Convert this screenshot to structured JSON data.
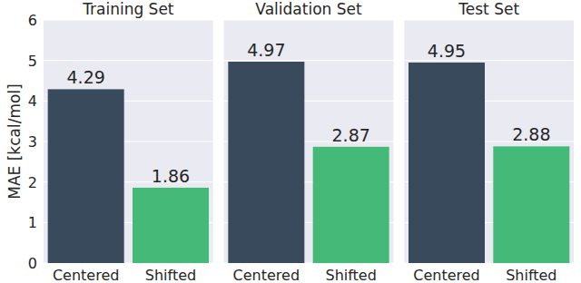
{
  "chart_data": [
    {
      "type": "bar",
      "title": "Training Set",
      "y_label": "MAE [kcal/mol]",
      "categories": [
        "Centered",
        "Shifted"
      ],
      "values": [
        4.29,
        1.86
      ],
      "colors": [
        "#394a5d",
        "#45ba78"
      ],
      "ylim": [
        0,
        6
      ],
      "yticks": [
        0,
        1,
        2,
        3,
        4,
        5,
        6
      ],
      "grid": true,
      "data_labels": true
    },
    {
      "type": "bar",
      "title": "Validation Set",
      "categories": [
        "Centered",
        "Shifted"
      ],
      "values": [
        4.97,
        2.87
      ],
      "colors": [
        "#394a5d",
        "#45ba78"
      ],
      "ylim": [
        0,
        6
      ],
      "yticks": [
        0,
        1,
        2,
        3,
        4,
        5,
        6
      ],
      "grid": true,
      "data_labels": true,
      "tick_labels": "x"
    },
    {
      "type": "bar",
      "title": "Test Set",
      "categories": [
        "Centered",
        "Shifted"
      ],
      "values": [
        4.95,
        2.88
      ],
      "colors": [
        "#394a5d",
        "#45ba78"
      ],
      "ylim": [
        0,
        6
      ],
      "yticks": [
        0,
        1,
        2,
        3,
        4,
        5,
        6
      ],
      "grid": true,
      "data_labels": true,
      "tick_labels": "x"
    }
  ]
}
